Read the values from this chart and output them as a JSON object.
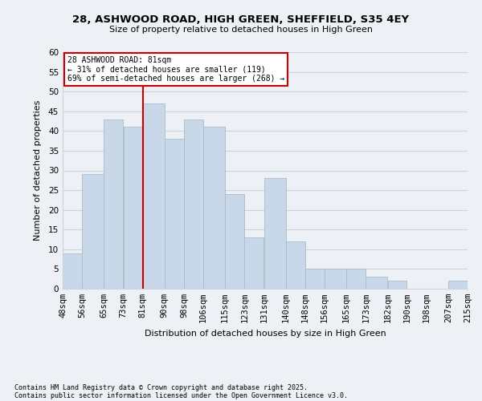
{
  "title": "28, ASHWOOD ROAD, HIGH GREEN, SHEFFIELD, S35 4EY",
  "subtitle": "Size of property relative to detached houses in High Green",
  "xlabel": "Distribution of detached houses by size in High Green",
  "ylabel": "Number of detached properties",
  "bar_color": "#c8d8e8",
  "bar_edge_color": "#a8bccb",
  "grid_color": "#c8d4de",
  "background_color": "#edf1f6",
  "bins": [
    48,
    56,
    65,
    73,
    81,
    90,
    98,
    106,
    115,
    123,
    131,
    140,
    148,
    156,
    165,
    173,
    182,
    190,
    198,
    207,
    215
  ],
  "bin_labels": [
    "48sqm",
    "56sqm",
    "65sqm",
    "73sqm",
    "81sqm",
    "90sqm",
    "98sqm",
    "106sqm",
    "115sqm",
    "123sqm",
    "131sqm",
    "140sqm",
    "148sqm",
    "156sqm",
    "165sqm",
    "173sqm",
    "182sqm",
    "190sqm",
    "198sqm",
    "207sqm",
    "215sqm"
  ],
  "heights": [
    9,
    29,
    43,
    41,
    47,
    38,
    43,
    41,
    24,
    13,
    28,
    12,
    5,
    5,
    5,
    3,
    2,
    0,
    0,
    2
  ],
  "ylim": [
    0,
    60
  ],
  "yticks": [
    0,
    5,
    10,
    15,
    20,
    25,
    30,
    35,
    40,
    45,
    50,
    55,
    60
  ],
  "property_sqm": 81,
  "annotation_title": "28 ASHWOOD ROAD: 81sqm",
  "annotation_line1": "← 31% of detached houses are smaller (119)",
  "annotation_line2": "69% of semi-detached houses are larger (268) →",
  "annotation_box_color": "#ffffff",
  "annotation_border_color": "#cc0000",
  "vline_color": "#cc0000",
  "footnote1": "Contains HM Land Registry data © Crown copyright and database right 2025.",
  "footnote2": "Contains public sector information licensed under the Open Government Licence v3.0."
}
